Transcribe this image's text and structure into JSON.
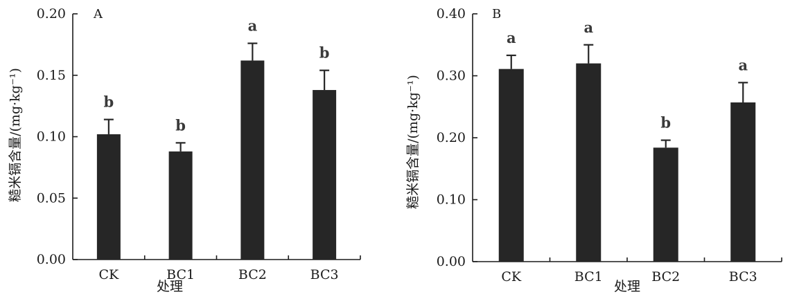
{
  "chart_data": [
    {
      "type": "bar",
      "panel_label": "A",
      "categories": [
        "CK",
        "BC1",
        "BC2",
        "BC3"
      ],
      "values": [
        0.102,
        0.088,
        0.162,
        0.138
      ],
      "errors": [
        0.012,
        0.007,
        0.014,
        0.016
      ],
      "significance": [
        "b",
        "b",
        "a",
        "b"
      ],
      "xlabel": "处理",
      "ylabel": "糙米镉含量/(mg·kg⁻¹)",
      "ylim": [
        0,
        0.2
      ],
      "yticks": [
        "0.00",
        "0.05",
        "0.10",
        "0.15",
        "0.20"
      ],
      "grid": false,
      "legend": "none"
    },
    {
      "type": "bar",
      "panel_label": "B",
      "categories": [
        "CK",
        "BC1",
        "BC2",
        "BC3"
      ],
      "values": [
        0.311,
        0.32,
        0.184,
        0.257
      ],
      "errors": [
        0.022,
        0.03,
        0.012,
        0.032
      ],
      "significance": [
        "a",
        "a",
        "b",
        "a"
      ],
      "xlabel": "处理",
      "ylabel": "糙米镉含量/(mg·kg⁻¹)",
      "ylim": [
        0,
        0.4
      ],
      "yticks": [
        "0.00",
        "0.10",
        "0.20",
        "0.30",
        "0.40"
      ],
      "grid": false,
      "legend": "none"
    }
  ]
}
